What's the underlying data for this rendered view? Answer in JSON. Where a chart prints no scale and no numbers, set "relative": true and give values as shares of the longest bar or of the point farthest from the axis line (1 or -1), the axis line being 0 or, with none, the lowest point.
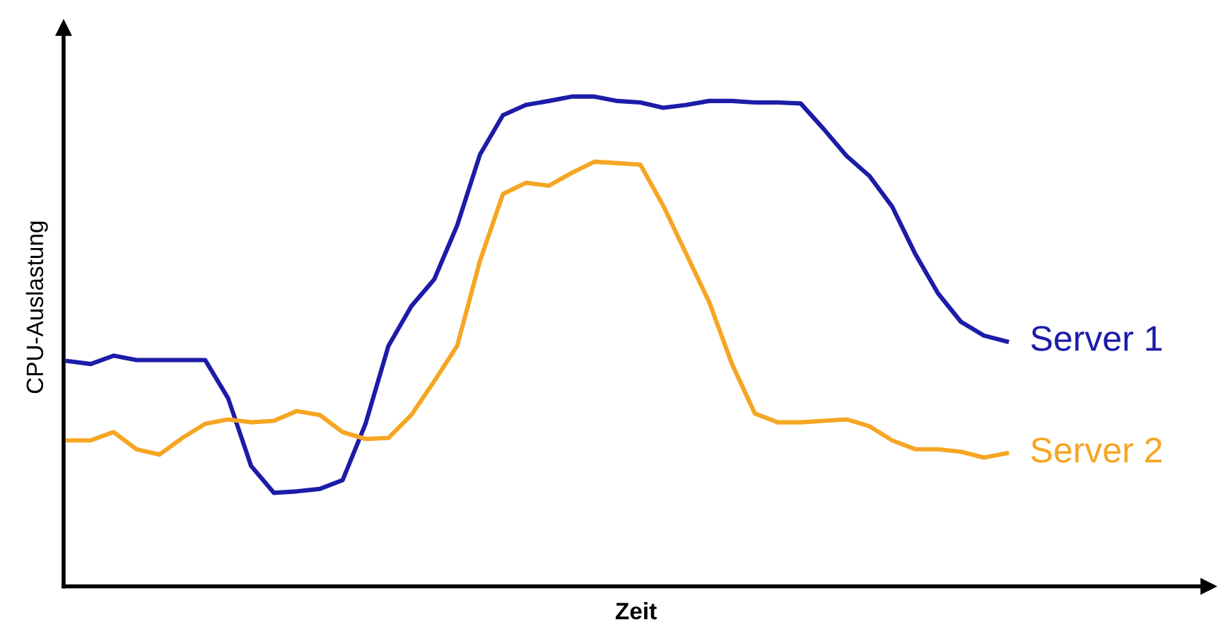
{
  "chart_data": {
    "type": "line",
    "relative": true,
    "xlabel": "Zeit",
    "ylabel": "CPU-Auslastung",
    "legend": false,
    "marker": "none",
    "line_style": "solid",
    "categories": [
      null,
      null,
      null,
      null,
      null,
      null,
      null,
      null,
      null,
      null,
      null,
      null,
      null,
      null,
      null,
      null,
      null,
      null,
      null,
      null,
      null,
      null,
      null,
      null,
      null,
      null,
      null,
      null,
      null,
      null,
      null,
      null,
      null,
      null,
      null,
      null,
      null,
      null,
      null,
      null,
      null,
      null
    ],
    "series": [
      {
        "name": "Server 1",
        "color": "#1c1ca8",
        "values": [
          0.46,
          0.454,
          0.471,
          0.462,
          0.462,
          0.462,
          0.462,
          0.384,
          0.246,
          0.191,
          0.194,
          0.199,
          0.217,
          0.332,
          0.491,
          0.572,
          0.627,
          0.737,
          0.882,
          0.962,
          0.983,
          0.991,
          1,
          1,
          0.991,
          0.988,
          0.977,
          0.983,
          0.991,
          0.991,
          0.988,
          0.988,
          0.986,
          0.934,
          0.879,
          0.838,
          0.775,
          0.679,
          0.598,
          0.54,
          0.512,
          0.5
        ]
      },
      {
        "name": "Server 2",
        "color": "#f5a623",
        "values": [
          0.298,
          0.298,
          0.315,
          0.28,
          0.269,
          0.303,
          0.332,
          0.341,
          0.335,
          0.338,
          0.358,
          0.35,
          0.315,
          0.301,
          0.303,
          0.35,
          0.419,
          0.491,
          0.665,
          0.801,
          0.824,
          0.818,
          0.844,
          0.867,
          0.864,
          0.861,
          0.777,
          0.679,
          0.581,
          0.454,
          0.353,
          0.335,
          0.335,
          0.338,
          0.341,
          0.327,
          0.298,
          0.28,
          0.28,
          0.275,
          0.263,
          0.272
        ]
      }
    ]
  }
}
